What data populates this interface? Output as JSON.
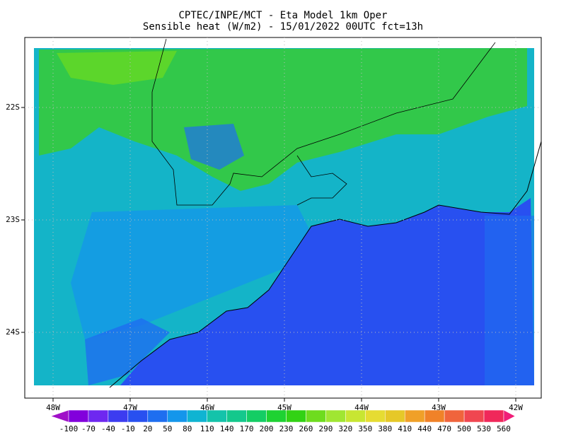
{
  "title": [
    "CPTEC/INPE/MCT -  Eta Model 1km Oper",
    "Sensible heat (W/m2) - 15/01/2022 00UTC fct=13h"
  ],
  "lat_labels": [
    "22S",
    "23S",
    "24S"
  ],
  "lon_labels": [
    "48W",
    "47W",
    "46W",
    "45W",
    "44W",
    "43W",
    "42W"
  ],
  "colorbar": {
    "levels": [
      -100,
      -70,
      -40,
      -10,
      20,
      50,
      80,
      110,
      140,
      170,
      200,
      230,
      260,
      290,
      320,
      350,
      380,
      410,
      440,
      470,
      500,
      530,
      560
    ],
    "colors": [
      "#a010c8",
      "#8200dc",
      "#6e28f0",
      "#3c3cf0",
      "#2850f0",
      "#1e6ef0",
      "#1496eb",
      "#0fb4d2",
      "#14c3aa",
      "#14c88c",
      "#14cd64",
      "#1ed232",
      "#32d214",
      "#6edc1e",
      "#a0e632",
      "#c8e632",
      "#e6dc32",
      "#e6c828",
      "#f0a028",
      "#f08228",
      "#f0643c",
      "#f04650",
      "#f0285a",
      "#f01e78"
    ]
  }
}
